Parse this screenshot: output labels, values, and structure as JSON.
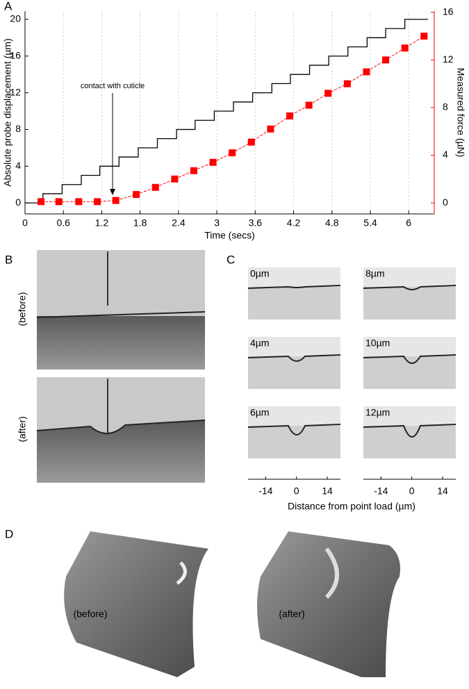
{
  "chart_data": {
    "type": "step-scatter",
    "panel_label": "A",
    "xlabel": "Time (secs)",
    "ylabel": "Absolute probe displacement (µm)",
    "y2label": "Measured force (µN)",
    "annotation": "contact with cuticle",
    "xlim": [
      0,
      6.4
    ],
    "xticks": [
      0,
      0.6,
      1.2,
      1.8,
      2.4,
      3,
      3.6,
      4.2,
      4.8,
      5.4,
      6
    ],
    "ylim": [
      -1.2,
      20.9
    ],
    "yticks": [
      0,
      4,
      8,
      12,
      16,
      20
    ],
    "y2lim": [
      -0.93,
      16.1
    ],
    "y2ticks": [
      0,
      4,
      8,
      12,
      16
    ],
    "grid": true,
    "series": [
      {
        "color": "#000000",
        "step": true,
        "x": [
          0,
          0.28,
          0.58,
          0.88,
          1.17,
          1.47,
          1.77,
          2.07,
          2.37,
          2.66,
          2.96,
          3.26,
          3.56,
          3.86,
          4.15,
          4.45,
          4.75,
          5.05,
          5.35,
          5.64,
          5.94,
          6.3
        ],
        "values": [
          0,
          1,
          2,
          3,
          4,
          5,
          6,
          7,
          8,
          9,
          10,
          11,
          12,
          13,
          14,
          15,
          16,
          17,
          18,
          19,
          20,
          20
        ]
      },
      {
        "color": "#ff0000",
        "axis": "y2",
        "x": [
          0.25,
          0.53,
          0.84,
          1.13,
          1.42,
          1.74,
          2.04,
          2.34,
          2.64,
          2.94,
          3.24,
          3.54,
          3.84,
          4.14,
          4.44,
          4.74,
          5.04,
          5.34,
          5.64,
          5.94,
          6.24
        ],
        "values": [
          0.1,
          0.1,
          0.1,
          0.1,
          0.2,
          0.7,
          1.3,
          2.0,
          2.7,
          3.4,
          4.2,
          5.1,
          6.2,
          7.3,
          8.2,
          9.2,
          10.0,
          11.0,
          12.0,
          13.0,
          14.0
        ]
      }
    ]
  },
  "panel_b": {
    "label": "B",
    "before": "(before)",
    "after": "(after)"
  },
  "panel_c": {
    "label": "C",
    "frames": [
      "0µm",
      "8µm",
      "4µm",
      "10µm",
      "6µm",
      "12µm"
    ],
    "xlim": [
      -22,
      20
    ],
    "xticks": [
      -14,
      0,
      14
    ],
    "xlabel": "Distance from point load (µm)"
  },
  "panel_d": {
    "label": "D",
    "before": "(before)",
    "after": "(after)"
  }
}
